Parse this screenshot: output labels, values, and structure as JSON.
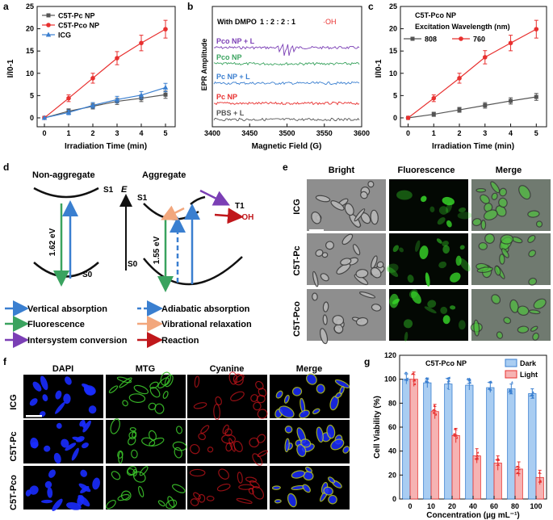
{
  "panel_labels": {
    "a": "a",
    "b": "b",
    "c": "c",
    "d": "d",
    "e": "e",
    "f": "f",
    "g": "g"
  },
  "colors": {
    "gray": "#555555",
    "red": "#e8302f",
    "blue": "#3a7fd0",
    "purple": "#7b3fb5",
    "green": "#3aa35f",
    "orange": "#f2a77d",
    "darkred": "#c0171b",
    "peach": "#f6b3b3",
    "sky": "#a9cdf2"
  },
  "chart_data": [
    {
      "id": "a",
      "type": "line",
      "title": "",
      "xlabel": "Irradiation Time (min)",
      "ylabel": "I/I0-1",
      "x": [
        0,
        1,
        2,
        3,
        4,
        5
      ],
      "xlim": [
        -0.3,
        5.4
      ],
      "ylim": [
        -2,
        25
      ],
      "xticks": [
        "0",
        "1",
        "2",
        "3",
        "4",
        "5"
      ],
      "yticks": [
        "0",
        "5",
        "10",
        "15",
        "20",
        "25"
      ],
      "series": [
        {
          "name": "C5T-Pc NP",
          "color": "#555555",
          "marker": "square",
          "values": [
            0,
            1.5,
            2.6,
            3.7,
            4.4,
            5.2
          ]
        },
        {
          "name": "C5T-Pco NP",
          "color": "#e8302f",
          "marker": "circle",
          "values": [
            0,
            4.4,
            8.9,
            13.4,
            16.8,
            19.9
          ]
        },
        {
          "name": "ICG",
          "color": "#3a7fd0",
          "marker": "triangle",
          "values": [
            0,
            1.2,
            2.8,
            4.1,
            5.1,
            6.8
          ]
        }
      ]
    },
    {
      "id": "b",
      "type": "line",
      "title": "With DMPO",
      "annotation": "1 : 2 : 2 : 1",
      "annotation2": "·OH",
      "xlabel": "Magnetic Field (G)",
      "ylabel": "EPR Amplitude",
      "xticks": [
        "3400",
        "3450",
        "3500",
        "3550",
        "3600"
      ],
      "series": [
        {
          "name": "Pco NP + L",
          "color": "#7b3fb5"
        },
        {
          "name": "Pco NP",
          "color": "#3aa35f"
        },
        {
          "name": "Pc NP + L",
          "color": "#3a7fd0"
        },
        {
          "name": "Pc NP",
          "color": "#e8302f"
        },
        {
          "name": "PBS + L",
          "color": "#555555"
        }
      ]
    },
    {
      "id": "c",
      "type": "line",
      "title": "C5T-Pco NP",
      "legend_title": "Excitation Wavelength (nm)",
      "xlabel": "Irradiation Time (min)",
      "ylabel": "I/I0-1",
      "x": [
        0,
        1,
        2,
        3,
        4,
        5
      ],
      "xlim": [
        -0.3,
        5.4
      ],
      "ylim": [
        -2,
        25
      ],
      "xticks": [
        "0",
        "1",
        "2",
        "3",
        "4",
        "5"
      ],
      "yticks": [
        "0",
        "5",
        "10",
        "15",
        "20",
        "25"
      ],
      "series": [
        {
          "name": "808",
          "color": "#555555",
          "marker": "square",
          "values": [
            0,
            0.8,
            1.8,
            2.8,
            3.8,
            4.7
          ]
        },
        {
          "name": "760",
          "color": "#e8302f",
          "marker": "circle",
          "values": [
            0,
            4.4,
            8.9,
            13.6,
            16.8,
            19.9
          ]
        }
      ]
    },
    {
      "id": "g",
      "type": "bar",
      "title": "C5T-Pco NP",
      "xlabel": "Concentration (µg mL⁻¹)",
      "ylabel": "Cell Viability (%)",
      "categories": [
        "0",
        "10",
        "20",
        "40",
        "60",
        "80",
        "100"
      ],
      "ylim": [
        0,
        120
      ],
      "yticks": [
        "0",
        "20",
        "40",
        "60",
        "80",
        "100",
        "120"
      ],
      "series": [
        {
          "name": "Dark",
          "color": "#a9cdf2",
          "values": [
            100,
            97,
            96,
            95,
            93,
            92,
            88
          ]
        },
        {
          "name": "Light",
          "color": "#f6b3b3",
          "values": [
            100,
            73,
            53,
            36,
            30,
            25,
            18
          ]
        }
      ]
    }
  ],
  "panel_d": {
    "non_aggregate": "Non-aggregate",
    "aggregate": "Aggregate",
    "energy": "E",
    "s1": "S1",
    "s0": "S0",
    "t1": "T1",
    "gap1": "1.62 eV",
    "gap2": "1.55 eV",
    "oh": "·OH",
    "legend": {
      "vertical": "Vertical absorption",
      "adiabatic": "Adiabatic absorption",
      "fluorescence": "Fluorescence",
      "vibrational": "Vibrational relaxation",
      "isc": "Intersystem conversion",
      "reaction": "Reaction"
    }
  },
  "panel_e": {
    "cols": [
      "Bright",
      "Fluorescence",
      "Merge"
    ],
    "rows": [
      "ICG",
      "C5T-Pc",
      "C5T-Pco"
    ]
  },
  "panel_f": {
    "cols": [
      "DAPI",
      "MTG",
      "Cyanine",
      "Merge"
    ],
    "rows": [
      "ICG",
      "C5T-Pc",
      "C5T-Pco"
    ]
  }
}
